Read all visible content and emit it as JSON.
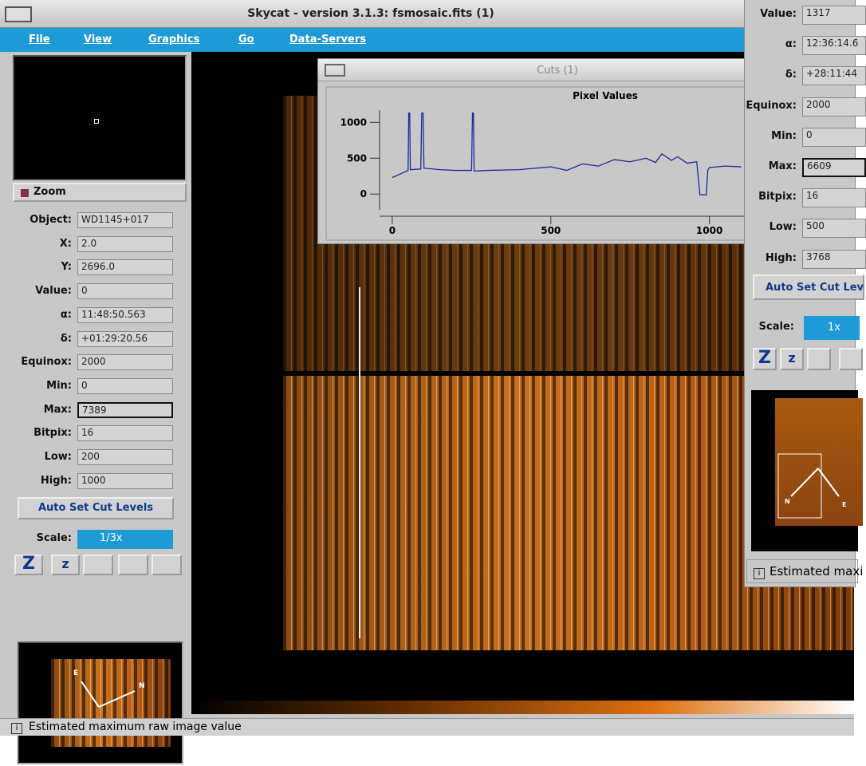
{
  "window_title": "Skycat - version 3.1.3: fsmosaic.fits (1)",
  "menu": [
    "File",
    "View",
    "Graphics",
    "Go",
    "Data-Servers"
  ],
  "zoom_label": "Zoom",
  "left_fields": [
    {
      "label": "Object:",
      "value": "WD1145+017"
    },
    {
      "label": "X:",
      "value": "2.0"
    },
    {
      "label": "Y:",
      "value": "2696.0"
    },
    {
      "label": "Value:",
      "value": "0"
    },
    {
      "label": "α:",
      "value": "11:48:50.563"
    },
    {
      "label": "δ:",
      "value": "+01:29:20.56"
    },
    {
      "label": "Equinox:",
      "value": "2000"
    },
    {
      "label": "Min:",
      "value": "0"
    },
    {
      "label": "Max:",
      "value": "7389"
    },
    {
      "label": "Bitpix:",
      "value": "16"
    },
    {
      "label": "Low:",
      "value": "200"
    },
    {
      "label": "High:",
      "value": "1000"
    }
  ],
  "left_auto_button": "Auto Set Cut Levels",
  "left_scale_label": "Scale:",
  "left_scale_value": "1/3x",
  "left_zoom_buttons": [
    "Z",
    "z"
  ],
  "left_compass": [
    "E",
    "N"
  ],
  "status": "Estimated maximum raw image value",
  "cuts_window": {
    "title": "Cuts (1)",
    "chart_data": {
      "type": "line",
      "title": "Pixel Values",
      "x": [
        0,
        50,
        52,
        55,
        57,
        90,
        93,
        97,
        100,
        150,
        200,
        250,
        253,
        256,
        258,
        300,
        400,
        450,
        500,
        550,
        600,
        650,
        700,
        750,
        800,
        830,
        850,
        880,
        900,
        930,
        960,
        970,
        975,
        977,
        990,
        995,
        1000,
        1050,
        1100
      ],
      "series": [
        {
          "name": "Pixel Values",
          "color": "#1a2a9a",
          "values": [
            230,
            330,
            1130,
            1130,
            340,
            350,
            1130,
            1130,
            360,
            340,
            330,
            330,
            1130,
            1130,
            320,
            330,
            340,
            360,
            380,
            330,
            420,
            390,
            480,
            450,
            500,
            440,
            560,
            470,
            520,
            430,
            450,
            -10,
            -10,
            -10,
            -10,
            330,
            370,
            390,
            380
          ]
        }
      ],
      "xlim": [
        -40,
        1280
      ],
      "ylim": [
        -220,
        1170
      ],
      "xticks": [
        0,
        500,
        1000
      ],
      "yticks": [
        0,
        500,
        1000
      ]
    }
  },
  "right_fields": [
    {
      "label": "Value:",
      "value": "1317"
    },
    {
      "label": "α:",
      "value": "12:36:14.6"
    },
    {
      "label": "δ:",
      "value": "+28:11:44"
    },
    {
      "label": "Equinox:",
      "value": "2000"
    },
    {
      "label": "Min:",
      "value": "0"
    },
    {
      "label": "Max:",
      "value": "6609"
    },
    {
      "label": "Bitpix:",
      "value": "16"
    },
    {
      "label": "Low:",
      "value": "500"
    },
    {
      "label": "High:",
      "value": "3768"
    }
  ],
  "right_auto_button": "Auto Set Cut Lev",
  "right_scale_label": "Scale:",
  "right_scale_value": "1x",
  "right_zoom_buttons": [
    "Z",
    "z"
  ],
  "right_compass": [
    "N",
    "E"
  ],
  "right_status": "Estimated maxi"
}
